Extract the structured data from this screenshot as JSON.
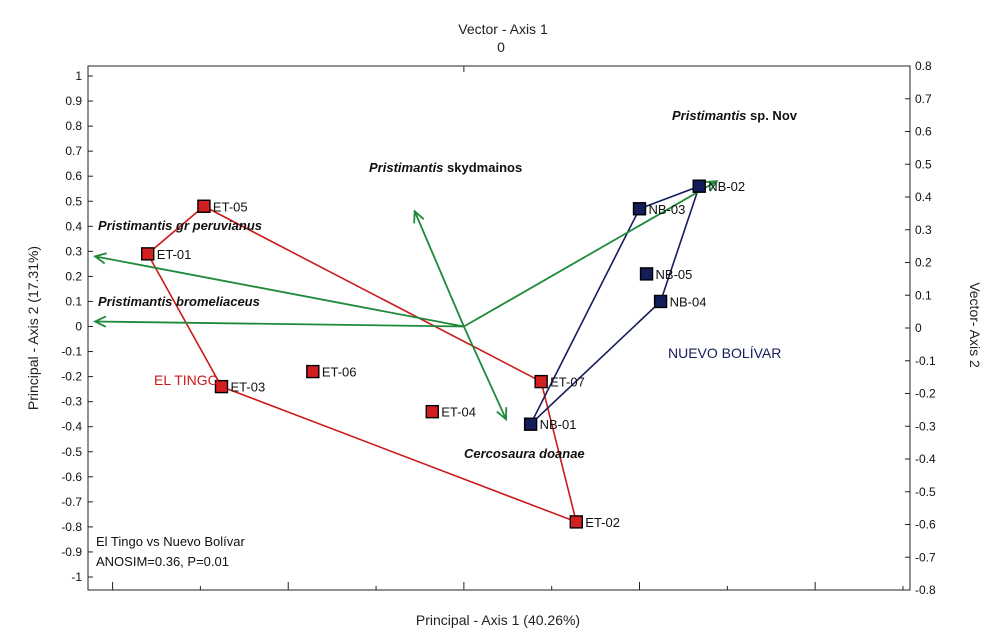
{
  "chart_data": {
    "type": "scatter",
    "title": "",
    "xlabel": "Principal - Axis 1 (40.26%)",
    "ylabel": "Principal - Axis 2 (17.31%)",
    "top_axis_label": "Vector - Axis 1",
    "top_axis_tick": "0",
    "right_axis_label": "Vector- Axis 2",
    "ylim": [
      -1,
      1
    ],
    "y_ticks": [
      "1",
      "0.9",
      "0.8",
      "0.7",
      "0.6",
      "0.5",
      "0.4",
      "0.3",
      "0.2",
      "0.1",
      "0",
      "-0.1",
      "-0.2",
      "-0.3",
      "-0.4",
      "-0.5",
      "-0.6",
      "-0.7",
      "-0.8",
      "-0.9",
      "-1"
    ],
    "right_ylim": [
      -0.8,
      0.8
    ],
    "right_ticks": [
      "0.8",
      "0.7",
      "0.6",
      "0.5",
      "0.4",
      "0.3",
      "0.2",
      "0.1",
      "0",
      "-0.1",
      "-0.2",
      "-0.3",
      "-0.4",
      "-0.5",
      "-0.6",
      "-0.7",
      "-0.8"
    ],
    "xlim": [
      -1.07,
      1.27
    ],
    "grid": false,
    "groups": [
      {
        "name": "EL TINGO",
        "color": "#cc1a1a",
        "points": [
          {
            "label": "ET-05",
            "x": -0.74,
            "y": 0.48
          },
          {
            "label": "ET-01",
            "x": -0.9,
            "y": 0.29
          },
          {
            "label": "ET-03",
            "x": -0.69,
            "y": -0.24
          },
          {
            "label": "ET-06",
            "x": -0.43,
            "y": -0.18
          },
          {
            "label": "ET-04",
            "x": -0.09,
            "y": -0.34
          },
          {
            "label": "ET-07",
            "x": 0.22,
            "y": -0.22
          },
          {
            "label": "ET-02",
            "x": 0.32,
            "y": -0.78
          }
        ],
        "hull": [
          "ET-05",
          "ET-07",
          "ET-02",
          "ET-03",
          "ET-01"
        ]
      },
      {
        "name": "NUEVO BOLÍVAR",
        "color": "#141c5a",
        "points": [
          {
            "label": "NB-02",
            "x": 0.67,
            "y": 0.56
          },
          {
            "label": "NB-03",
            "x": 0.5,
            "y": 0.47
          },
          {
            "label": "NB-05",
            "x": 0.52,
            "y": 0.21
          },
          {
            "label": "NB-04",
            "x": 0.56,
            "y": 0.1
          },
          {
            "label": "NB-01",
            "x": 0.19,
            "y": -0.39
          }
        ],
        "hull": [
          "NB-02",
          "NB-04",
          "NB-01",
          "NB-03"
        ]
      }
    ],
    "vectors": [
      {
        "name_italic": "Pristimantis",
        "name_rest": " sp. Nov",
        "x": 0.72,
        "y": 0.58
      },
      {
        "name_italic": "Pristimantis",
        "name_rest": " skydmainos",
        "x": -0.14,
        "y": 0.46
      },
      {
        "name_italic": "Pristimantis gr peruvianus",
        "name_rest": "",
        "x": -1.05,
        "y": 0.28
      },
      {
        "name_italic": "Pristimantis bromeliaceus",
        "name_rest": "",
        "x": -1.05,
        "y": 0.02
      },
      {
        "name_italic": "Cercosaura doanae",
        "name_rest": "",
        "x": 0.12,
        "y": -0.37
      }
    ],
    "vector_color": "#1e8a3a",
    "annotation_lines": [
      "El Tingo vs Nuevo Bolívar",
      "ANOSIM=0.36, P=0.01"
    ]
  }
}
